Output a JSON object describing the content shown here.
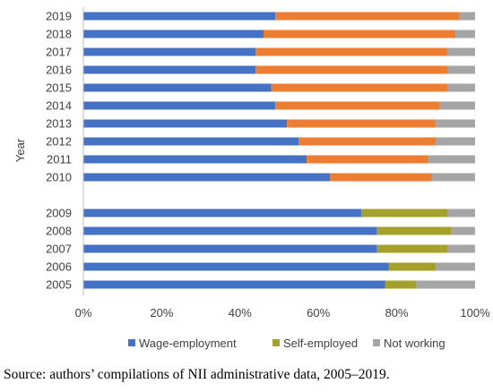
{
  "chart_data": {
    "type": "bar",
    "orientation": "horizontal",
    "stacked": true,
    "ylabel": "Year",
    "xlabel": "",
    "xlim": [
      0,
      100
    ],
    "x_tick_labels": [
      "0%",
      "20%",
      "40%",
      "60%",
      "80%",
      "100%"
    ],
    "categories": [
      "2019",
      "2018",
      "2017",
      "2016",
      "2015",
      "2014",
      "2013",
      "2012",
      "2011",
      "2010",
      "2009",
      "2008",
      "2007",
      "2006",
      "2005"
    ],
    "series": [
      {
        "name": "Wage-employment",
        "values": [
          49,
          46,
          44,
          44,
          48,
          49,
          52,
          55,
          57,
          63,
          71,
          75,
          75,
          78,
          77
        ]
      },
      {
        "name": "Self-employed",
        "values": [
          47,
          49,
          49,
          49,
          45,
          42,
          38,
          35,
          31,
          26,
          22,
          19,
          18,
          12,
          8
        ]
      },
      {
        "name": "Not working",
        "values": [
          4,
          5,
          7,
          7,
          7,
          9,
          10,
          10,
          12,
          11,
          7,
          6,
          7,
          10,
          15
        ]
      }
    ],
    "grid": false,
    "legend_position": "bottom"
  },
  "colors": {
    "wage": "#4472C4",
    "self_recent": "#ED7D31",
    "self_early": "#A5A02A",
    "not_working": "#A5A5A5",
    "axis": "#BFBFBF",
    "text": "#404040"
  },
  "caption": "Source: authors’ compilations of NII administrative data, 2005–2019."
}
